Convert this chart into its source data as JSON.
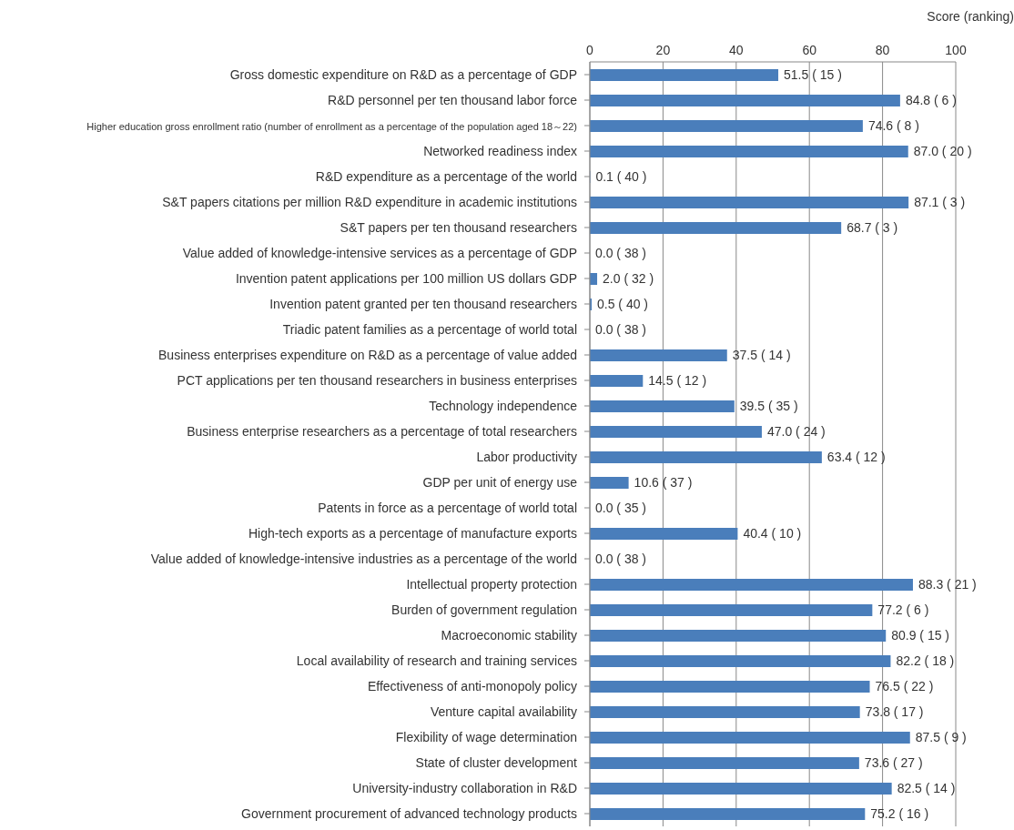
{
  "chart_data": {
    "type": "bar",
    "orientation": "horizontal",
    "xlabel": "Score (ranking)",
    "color": "#4a7ebb",
    "xlim": [
      0,
      100
    ],
    "xticks": [
      0,
      20,
      40,
      60,
      80,
      100
    ],
    "grid": "x",
    "categories": [
      "Gross domestic expenditure on R&D as a percentage of GDP",
      "R&D personnel per ten thousand labor force",
      "Higher education gross enrollment ratio (number of enrollment as a percentage of the population aged 18～22)",
      "Networked readiness index",
      "R&D expenditure as a percentage of the world",
      "S&T papers citations per million R&D expenditure in academic institutions",
      "S&T papers per ten thousand researchers",
      "Value added of knowledge-intensive services as a percentage of GDP",
      "Invention patent applications per 100 million US dollars GDP",
      "Invention patent granted per ten thousand researchers",
      "Triadic patent families as a percentage of world total",
      "Business enterprises expenditure on R&D as a percentage of value added",
      "PCT applications per ten thousand researchers in business enterprises",
      "Technology independence",
      "Business enterprise researchers as a percentage of total researchers",
      "Labor productivity",
      "GDP per unit of energy use",
      "Patents in force as a percentage of world total",
      "High-tech exports as a percentage of manufacture exports",
      "Value added of knowledge-intensive industries as a percentage of the world",
      "Intellectual property protection",
      "Burden of government regulation",
      "Macroeconomic stability",
      "Local availability of research and training services",
      "Effectiveness of anti-monopoly policy",
      "Venture capital availability",
      "Flexibility of wage determination",
      "State of cluster development",
      "University-industry collaboration in R&D",
      "Government procurement of advanced technology products"
    ],
    "values": [
      51.5,
      84.8,
      74.6,
      87.0,
      0.1,
      87.1,
      68.7,
      0.0,
      2.0,
      0.5,
      0.0,
      37.5,
      14.5,
      39.5,
      47.0,
      63.4,
      10.6,
      0.0,
      40.4,
      0.0,
      88.3,
      77.2,
      80.9,
      82.2,
      76.5,
      73.8,
      87.5,
      73.6,
      82.5,
      75.2
    ],
    "value_labels": [
      "51.5 ( 15 )",
      "84.8 ( 6 )",
      "74.6 ( 8 )",
      "87.0 ( 20 )",
      "0.1 ( 40 )",
      "87.1 ( 3 )",
      "68.7 ( 3 )",
      "0.0 ( 38 )",
      "2.0 ( 32 )",
      "0.5 ( 40 )",
      "0.0 ( 38 )",
      "37.5 ( 14 )",
      "14.5 ( 12 )",
      "39.5 ( 35 )",
      "47.0 ( 24 )",
      "63.4 ( 12 )",
      "10.6 ( 37 )",
      "0.0 ( 35 )",
      "40.4 ( 10 )",
      "0.0 ( 38 )",
      "88.3 ( 21 )",
      "77.2 ( 6 )",
      "80.9 ( 15 )",
      "82.2 ( 18 )",
      "76.5 ( 22 )",
      "73.8 ( 17 )",
      "87.5 ( 9 )",
      "73.6 ( 27 )",
      "82.5 ( 14 )",
      "75.2 ( 16 )"
    ]
  }
}
